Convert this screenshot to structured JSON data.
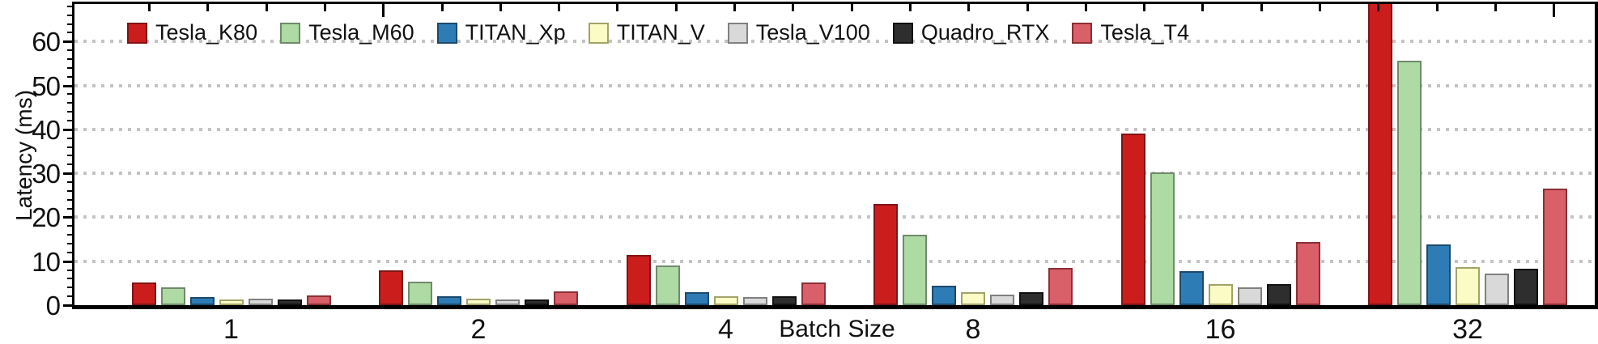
{
  "chart_data": {
    "type": "bar",
    "title": "",
    "xlabel": "Batch Size",
    "ylabel": "Latency (ms)",
    "categories": [
      "1",
      "2",
      "4",
      "8",
      "16",
      "32"
    ],
    "series": [
      {
        "name": "Tesla_K80",
        "color": "#cc1d1d",
        "edge": "#7f1416",
        "values": [
          5.2,
          8.0,
          11.5,
          23.0,
          39.0,
          69.5
        ]
      },
      {
        "name": "Tesla_M60",
        "color": "#aedaa4",
        "edge": "#6f8a6a",
        "values": [
          4.0,
          5.4,
          9.1,
          16.0,
          30.2,
          55.7
        ]
      },
      {
        "name": "TITAN_Xp",
        "color": "#2e7cb5",
        "edge": "#1b4a6b",
        "values": [
          1.8,
          2.1,
          3.0,
          4.5,
          7.7,
          13.8
        ]
      },
      {
        "name": "TITAN_V",
        "color": "#fbfbc6",
        "edge": "#a2a26b",
        "values": [
          1.3,
          1.5,
          2.0,
          2.9,
          4.8,
          8.6
        ]
      },
      {
        "name": "Tesla_V100",
        "color": "#d9d9d9",
        "edge": "#808080",
        "values": [
          1.4,
          1.3,
          1.9,
          2.4,
          4.0,
          7.1
        ]
      },
      {
        "name": "Quadro_RTX",
        "color": "#2e2e2e",
        "edge": "#111111",
        "values": [
          1.3,
          1.2,
          2.0,
          2.9,
          4.7,
          8.3
        ]
      },
      {
        "name": "Tesla_T4",
        "color": "#d95f69",
        "edge": "#8c2f36",
        "values": [
          2.3,
          3.2,
          5.2,
          8.5,
          14.3,
          26.5
        ]
      }
    ],
    "yticks": [
      0,
      10,
      20,
      30,
      40,
      50,
      60
    ],
    "ylim": [
      0,
      68.9
    ],
    "grid": "horizontal-dotted",
    "legend_position": "top-inside-horizontal",
    "note": "batch-32 Tesla_K80 bar is clipped at plot top"
  },
  "colors": {
    "grid": "#c3c3c3",
    "axis": "#000000",
    "text": "#111111",
    "background": "#ffffff"
  }
}
